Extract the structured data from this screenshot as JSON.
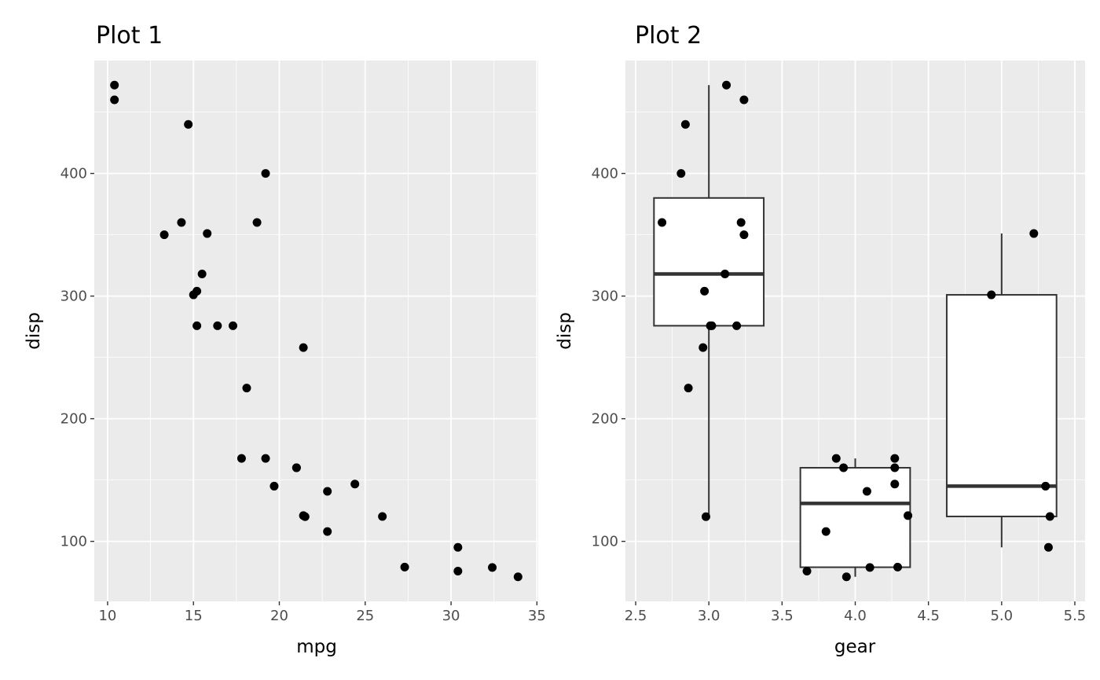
{
  "chart_data": [
    {
      "type": "scatter",
      "title": "Plot 1",
      "xlabel": "mpg",
      "ylabel": "disp",
      "xlim": [
        9.225,
        35.075
      ],
      "ylim": [
        51.05,
        492.05
      ],
      "xticks": [
        10,
        15,
        20,
        25,
        30,
        35
      ],
      "yticks": [
        100,
        200,
        300,
        400
      ],
      "grid": true,
      "points": [
        [
          21.0,
          160
        ],
        [
          21.0,
          160
        ],
        [
          22.8,
          108
        ],
        [
          21.4,
          258
        ],
        [
          18.7,
          360
        ],
        [
          18.1,
          225
        ],
        [
          14.3,
          360
        ],
        [
          24.4,
          146.7
        ],
        [
          22.8,
          140.8
        ],
        [
          19.2,
          167.6
        ],
        [
          17.8,
          167.6
        ],
        [
          16.4,
          275.8
        ],
        [
          17.3,
          275.8
        ],
        [
          15.2,
          275.8
        ],
        [
          10.4,
          472
        ],
        [
          10.4,
          460
        ],
        [
          14.7,
          440
        ],
        [
          32.4,
          78.7
        ],
        [
          30.4,
          75.7
        ],
        [
          33.9,
          71.1
        ],
        [
          21.5,
          120.1
        ],
        [
          15.5,
          318
        ],
        [
          15.2,
          304
        ],
        [
          13.3,
          350
        ],
        [
          19.2,
          400
        ],
        [
          27.3,
          79
        ],
        [
          26.0,
          120.3
        ],
        [
          30.4,
          95.1
        ],
        [
          15.8,
          351
        ],
        [
          19.7,
          145
        ],
        [
          15.0,
          301
        ],
        [
          21.4,
          121
        ]
      ]
    },
    {
      "type": "box",
      "title": "Plot 2",
      "xlabel": "gear",
      "ylabel": "disp",
      "xlim": [
        2.43,
        5.57
      ],
      "ylim": [
        51.05,
        492.05
      ],
      "xticks": [
        "2.5",
        "3.0",
        "3.5",
        "4.0",
        "4.5",
        "5.0",
        "5.5"
      ],
      "yticks": [
        100,
        200,
        300,
        400
      ],
      "grid": true,
      "boxes": [
        {
          "x": 3,
          "lower_whisker": 120.1,
          "q1": 275.8,
          "median": 318,
          "q3": 380,
          "upper_whisker": 472
        },
        {
          "x": 4,
          "lower_whisker": 71.1,
          "q1": 78.9,
          "median": 130.9,
          "q3": 160,
          "upper_whisker": 167.6
        },
        {
          "x": 5,
          "lower_whisker": 95.1,
          "q1": 120.3,
          "median": 145,
          "q3": 301,
          "upper_whisker": 351
        }
      ],
      "jitter_points": [
        [
          2.68,
          360
        ],
        [
          2.81,
          400
        ],
        [
          2.84,
          440
        ],
        [
          3.12,
          472
        ],
        [
          3.24,
          460
        ],
        [
          3.22,
          360
        ],
        [
          3.24,
          350
        ],
        [
          3.11,
          318
        ],
        [
          2.97,
          304
        ],
        [
          3.01,
          275.8
        ],
        [
          3.02,
          275.8
        ],
        [
          3.19,
          275.8
        ],
        [
          2.96,
          258
        ],
        [
          2.86,
          225
        ],
        [
          2.98,
          120.1
        ],
        [
          3.67,
          75.7
        ],
        [
          3.8,
          108
        ],
        [
          3.87,
          167.6
        ],
        [
          3.92,
          160
        ],
        [
          4.08,
          140.8
        ],
        [
          3.94,
          71.1
        ],
        [
          4.1,
          78.7
        ],
        [
          4.27,
          167.6
        ],
        [
          4.27,
          160
        ],
        [
          4.27,
          146.7
        ],
        [
          4.29,
          79
        ],
        [
          4.36,
          121
        ],
        [
          4.93,
          301
        ],
        [
          5.22,
          351
        ],
        [
          5.3,
          145
        ],
        [
          5.33,
          120.3
        ],
        [
          5.32,
          95.1
        ]
      ]
    }
  ]
}
